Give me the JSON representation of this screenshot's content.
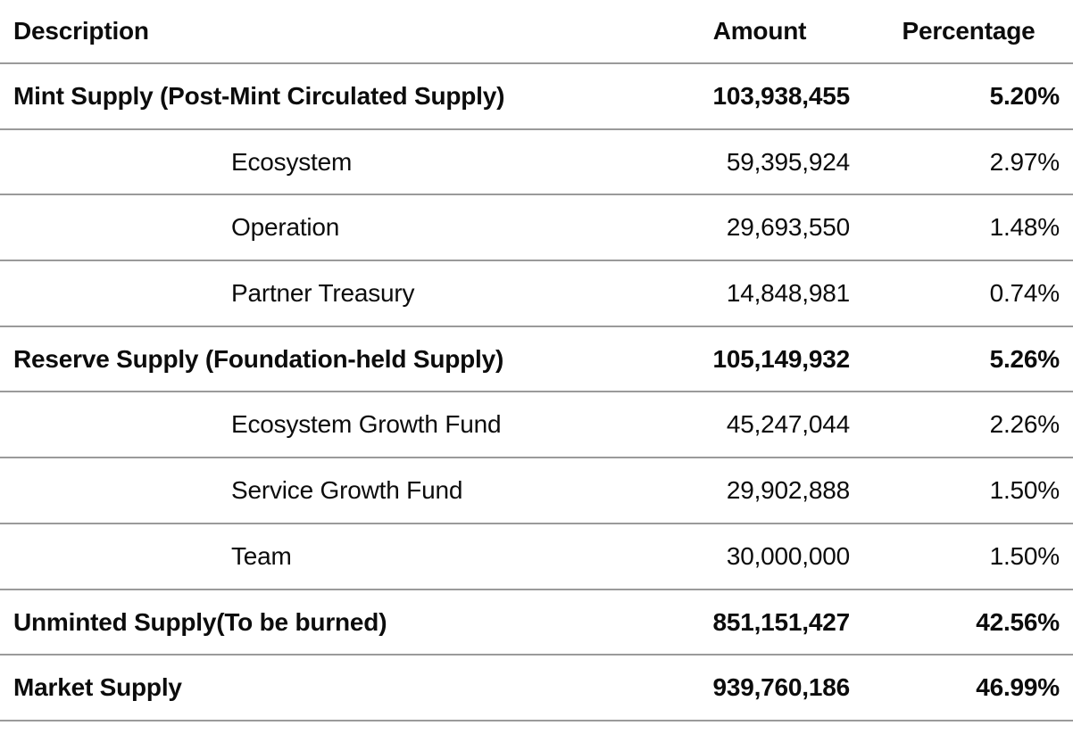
{
  "table": {
    "columns": {
      "description": "Description",
      "amount": "Amount",
      "percentage": "Percentage"
    },
    "rows": [
      {
        "description": "Mint Supply (Post-Mint Circulated Supply)",
        "amount": "103,938,455",
        "percentage": "5.20%",
        "style": "section"
      },
      {
        "description": "Ecosystem",
        "amount": "59,395,924",
        "percentage": "2.97%",
        "style": "sub"
      },
      {
        "description": "Operation",
        "amount": "29,693,550",
        "percentage": "1.48%",
        "style": "sub"
      },
      {
        "description": "Partner Treasury",
        "amount": "14,848,981",
        "percentage": "0.74%",
        "style": "sub"
      },
      {
        "description": "Reserve Supply (Foundation-held Supply)",
        "amount": "105,149,932",
        "percentage": "5.26%",
        "style": "section"
      },
      {
        "description": "Ecosystem Growth Fund",
        "amount": "45,247,044",
        "percentage": "2.26%",
        "style": "sub"
      },
      {
        "description": "Service Growth Fund",
        "amount": "29,902,888",
        "percentage": "1.50%",
        "style": "sub"
      },
      {
        "description": "Team",
        "amount": "30,000,000",
        "percentage": "1.50%",
        "style": "sub"
      },
      {
        "description": "Unminted Supply(To be burned)",
        "amount": "851,151,427",
        "percentage": "42.56%",
        "style": "section"
      },
      {
        "description": "Market Supply",
        "amount": "939,760,186",
        "percentage": "46.99%",
        "style": "section"
      }
    ],
    "colors": {
      "text": "#0c0c0c",
      "divider": "#9a9a9a",
      "background": "#ffffff"
    }
  }
}
